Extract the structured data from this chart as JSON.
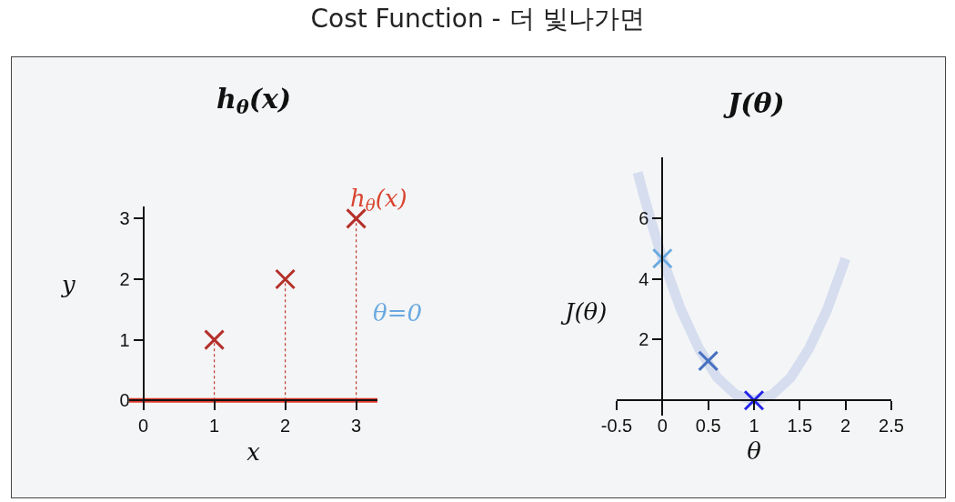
{
  "chart_data": [
    {
      "type": "scatter",
      "title": "Cost Function - 더 빛나가면",
      "subtitle": "h$_{θ}$(x)",
      "xlabel": "x",
      "ylabel": "y",
      "xlim": [
        -0.2,
        3.3
      ],
      "ylim": [
        -0.1,
        3.2
      ],
      "xticks": [
        0,
        1,
        2,
        3
      ],
      "yticks": [
        0,
        1,
        2,
        3
      ],
      "marker": "cross",
      "grid": false,
      "annotations": [
        "h$_{θ}$(x)",
        "θ=0"
      ],
      "series": [
        {
          "type": "line",
          "color": "#e0392b",
          "x": [
            -0.2,
            3.3
          ],
          "values": [
            0,
            0
          ],
          "line_style": "solid",
          "marker": "none"
        },
        {
          "type": "line",
          "color": "#c0392b",
          "x": [
            1,
            1
          ],
          "values": [
            0,
            1
          ],
          "line_style": "dotted",
          "marker": "none"
        },
        {
          "type": "line",
          "color": "#c0392b",
          "x": [
            2,
            2
          ],
          "values": [
            0,
            2
          ],
          "line_style": "dotted",
          "marker": "none"
        },
        {
          "type": "line",
          "color": "#c0392b",
          "x": [
            3,
            3
          ],
          "values": [
            0,
            3
          ],
          "line_style": "dotted",
          "marker": "none"
        },
        {
          "color": "#b5302a",
          "x": [
            1,
            2,
            3
          ],
          "values": [
            1,
            2,
            3
          ]
        }
      ]
    },
    {
      "type": "scatter",
      "subtitle": "J(θ)",
      "xlabel": "θ",
      "ylabel": "J(θ)",
      "xlim": [
        -0.5,
        2.5
      ],
      "ylim": [
        -0.5,
        8
      ],
      "xticks": [
        -0.5,
        0,
        0.5,
        1,
        1.5,
        2,
        2.5
      ],
      "yticks": [
        2,
        4,
        6
      ],
      "marker": "cross",
      "grid": false,
      "series": [
        {
          "type": "line",
          "color": "#d5ddef",
          "x": [
            -0.27,
            -0.2,
            -0.1,
            0,
            0.2,
            0.4,
            0.6,
            0.8,
            1,
            1.2,
            1.4,
            1.6,
            1.8,
            2
          ],
          "values": [
            7.5,
            6.7,
            5.65,
            4.67,
            3.0,
            1.7,
            0.75,
            0.19,
            0,
            0.19,
            0.75,
            1.7,
            3.0,
            4.67
          ],
          "line_style": "solid",
          "marker": "none"
        },
        {
          "colors": [
            "#6aa9e0",
            "#4872c0",
            "#2424e8"
          ],
          "x": [
            0,
            0.5,
            1
          ],
          "values": [
            4.67,
            1.3,
            0
          ]
        }
      ]
    }
  ]
}
